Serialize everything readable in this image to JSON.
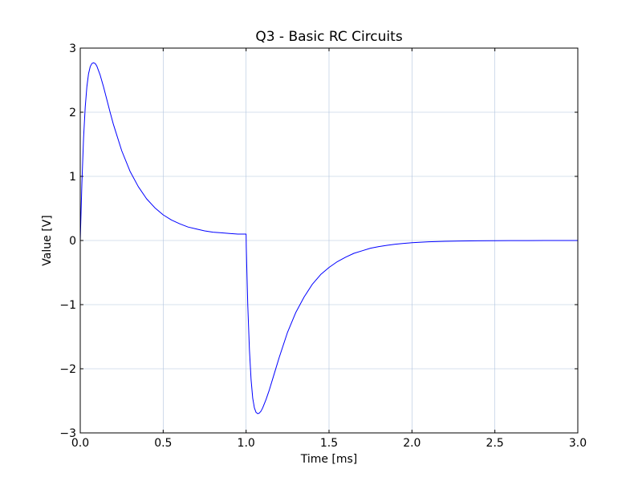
{
  "chart_data": {
    "type": "line",
    "title": "Q3 - Basic RC Circuits",
    "xlabel": "Time  [ms]",
    "ylabel": "Value [V]",
    "xlim": [
      0.0,
      3.0
    ],
    "ylim": [
      -3,
      3
    ],
    "xticks": [
      0.0,
      0.5,
      1.0,
      1.5,
      2.0,
      2.5,
      3.0
    ],
    "xtick_labels": [
      "0.0",
      "0.5",
      "1.0",
      "1.5",
      "2.0",
      "2.5",
      "3.0"
    ],
    "yticks": [
      -3,
      -2,
      -1,
      0,
      1,
      2,
      3
    ],
    "ytick_labels": [
      "−3",
      "−2",
      "−1",
      "0",
      "1",
      "2",
      "3"
    ],
    "grid": true,
    "series": [
      {
        "color": "#0000ff",
        "x": [
          0.0,
          0.01,
          0.02,
          0.03,
          0.04,
          0.05,
          0.06,
          0.07,
          0.08,
          0.09,
          0.1,
          0.12,
          0.14,
          0.16,
          0.18,
          0.2,
          0.25,
          0.3,
          0.35,
          0.4,
          0.45,
          0.5,
          0.55,
          0.6,
          0.65,
          0.7,
          0.75,
          0.8,
          0.85,
          0.9,
          0.95,
          1.0,
          1.001,
          1.01,
          1.02,
          1.03,
          1.04,
          1.05,
          1.06,
          1.07,
          1.08,
          1.09,
          1.1,
          1.12,
          1.14,
          1.16,
          1.18,
          1.2,
          1.25,
          1.3,
          1.35,
          1.4,
          1.45,
          1.5,
          1.55,
          1.6,
          1.65,
          1.7,
          1.75,
          1.8,
          1.85,
          1.9,
          1.95,
          2.0,
          2.1,
          2.2,
          2.3,
          2.4,
          2.5,
          2.6,
          2.7,
          2.8,
          2.9,
          3.0
        ],
        "y": [
          0.0,
          0.9,
          1.6,
          2.08,
          2.4,
          2.6,
          2.71,
          2.76,
          2.77,
          2.76,
          2.72,
          2.58,
          2.4,
          2.2,
          2.0,
          1.81,
          1.4,
          1.08,
          0.84,
          0.65,
          0.51,
          0.4,
          0.32,
          0.26,
          0.21,
          0.18,
          0.15,
          0.13,
          0.12,
          0.11,
          0.1,
          0.1,
          -0.1,
          -1.0,
          -1.7,
          -2.17,
          -2.46,
          -2.61,
          -2.68,
          -2.7,
          -2.69,
          -2.66,
          -2.61,
          -2.48,
          -2.33,
          -2.16,
          -1.99,
          -1.82,
          -1.43,
          -1.12,
          -0.88,
          -0.68,
          -0.53,
          -0.42,
          -0.33,
          -0.26,
          -0.2,
          -0.16,
          -0.12,
          -0.095,
          -0.075,
          -0.058,
          -0.045,
          -0.035,
          -0.021,
          -0.013,
          -0.008,
          -0.005,
          -0.003,
          -0.002,
          -0.001,
          -0.0006,
          -0.0004,
          -0.0002
        ]
      }
    ]
  }
}
